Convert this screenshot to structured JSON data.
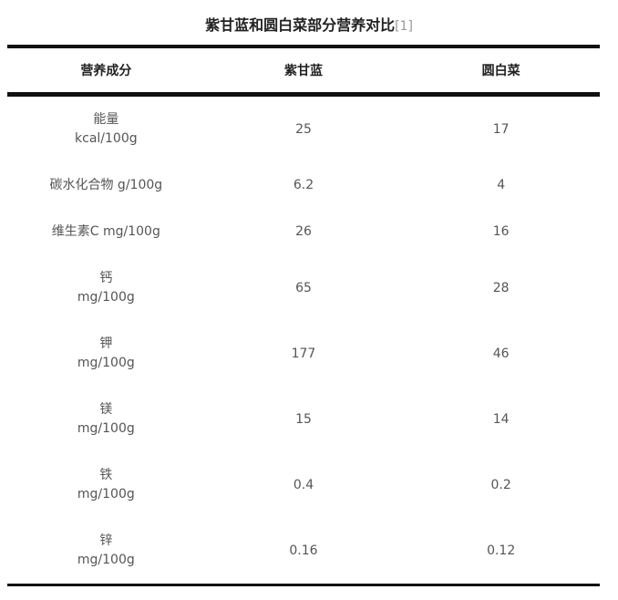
{
  "title": "紫甘蓝和圆白菜部分营养对比",
  "title_ref": "[1]",
  "headers": [
    "营养成分",
    "紫甘蓝",
    "圆白菜"
  ],
  "rows": [
    {
      "name": "能量",
      "unit": "kcal/100g",
      "a": "25",
      "b": "17"
    },
    {
      "name": "碳水化合物 g/100g",
      "unit": "",
      "a": "6.2",
      "b": "4"
    },
    {
      "name": "维生素C mg/100g",
      "unit": "",
      "a": "26",
      "b": "16"
    },
    {
      "name": "钙",
      "unit": "mg/100g",
      "a": "65",
      "b": "28"
    },
    {
      "name": "钾",
      "unit": "mg/100g",
      "a": "177",
      "b": "46"
    },
    {
      "name": "镁",
      "unit": "mg/100g",
      "a": "15",
      "b": "14"
    },
    {
      "name": "铁",
      "unit": "mg/100g",
      "a": "0.4",
      "b": "0.2"
    },
    {
      "name": "锌",
      "unit": "mg/100g",
      "a": "0.16",
      "b": "0.12"
    }
  ]
}
